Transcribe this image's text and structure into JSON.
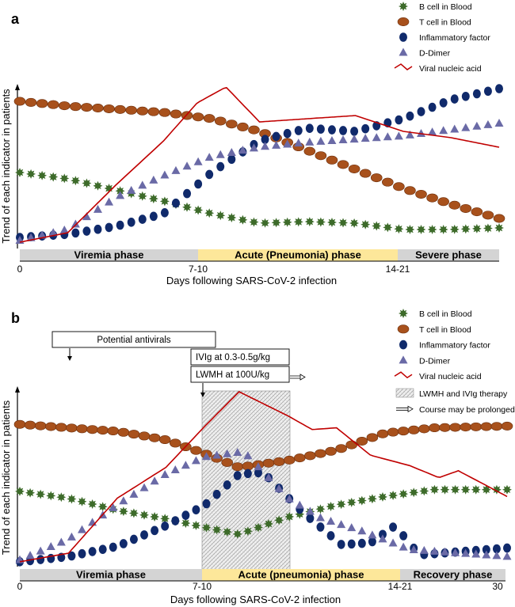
{
  "chart_data": [
    {
      "panel": "a",
      "type": "line",
      "xlabel": "Days following SARS-CoV-2 infection",
      "ylabel": "Trend of each indicator in patients",
      "x_ticks": [
        "0",
        "7-10",
        "14-21"
      ],
      "phases": [
        {
          "label": "Viremia  phase",
          "color": "#d4d4d4"
        },
        {
          "label": "Acute (Pneumonia) phase",
          "color": "#fde79a"
        },
        {
          "label": "Severe phase",
          "color": "#d4d4d4"
        }
      ],
      "x_range": [
        0,
        1
      ],
      "y_range": [
        0,
        1
      ],
      "x_note": "x is fraction of the time axis (0 = start, 1 = end of plotted range); y is relative trend (0 = baseline, 1 = max)",
      "series": [
        {
          "name": "B cell in Blood",
          "marker": "star",
          "color": "#3d6b2a",
          "points": [
            [
              0,
              0.46
            ],
            [
              0.1,
              0.42
            ],
            [
              0.2,
              0.35
            ],
            [
              0.3,
              0.28
            ],
            [
              0.4,
              0.2
            ],
            [
              0.5,
              0.14
            ],
            [
              0.6,
              0.15
            ],
            [
              0.7,
              0.14
            ],
            [
              0.8,
              0.1
            ],
            [
              0.9,
              0.1
            ],
            [
              1.0,
              0.11
            ]
          ]
        },
        {
          "name": "T cell in Blood",
          "marker": "ellipse",
          "color": "#a8511c",
          "points": [
            [
              0,
              0.91
            ],
            [
              0.1,
              0.88
            ],
            [
              0.2,
              0.86
            ],
            [
              0.3,
              0.84
            ],
            [
              0.4,
              0.8
            ],
            [
              0.5,
              0.72
            ],
            [
              0.6,
              0.6
            ],
            [
              0.7,
              0.48
            ],
            [
              0.8,
              0.36
            ],
            [
              0.9,
              0.26
            ],
            [
              1.0,
              0.17
            ]
          ]
        },
        {
          "name": "Inflammatory factor",
          "marker": "circle",
          "color": "#102a6b",
          "points": [
            [
              0,
              0.05
            ],
            [
              0.1,
              0.07
            ],
            [
              0.2,
              0.12
            ],
            [
              0.3,
              0.2
            ],
            [
              0.4,
              0.46
            ],
            [
              0.5,
              0.66
            ],
            [
              0.6,
              0.74
            ],
            [
              0.7,
              0.72
            ],
            [
              0.8,
              0.8
            ],
            [
              0.9,
              0.92
            ],
            [
              1.0,
              0.99
            ]
          ]
        },
        {
          "name": "D-Dimer",
          "marker": "triangle",
          "color": "#6a6aa6",
          "points": [
            [
              0,
              0.03
            ],
            [
              0.1,
              0.1
            ],
            [
              0.2,
              0.3
            ],
            [
              0.3,
              0.44
            ],
            [
              0.4,
              0.56
            ],
            [
              0.5,
              0.62
            ],
            [
              0.6,
              0.65
            ],
            [
              0.7,
              0.67
            ],
            [
              0.8,
              0.69
            ],
            [
              0.9,
              0.73
            ],
            [
              1.0,
              0.77
            ]
          ]
        },
        {
          "name": "Viral nucleic acid",
          "marker": "line",
          "color": "#c00000",
          "points": [
            [
              0,
              0.02
            ],
            [
              0.1,
              0.08
            ],
            [
              0.2,
              0.38
            ],
            [
              0.3,
              0.66
            ],
            [
              0.37,
              0.9
            ],
            [
              0.43,
              1.0
            ],
            [
              0.5,
              0.78
            ],
            [
              0.6,
              0.8
            ],
            [
              0.7,
              0.82
            ],
            [
              0.8,
              0.72
            ],
            [
              0.9,
              0.68
            ],
            [
              1.0,
              0.62
            ]
          ]
        }
      ],
      "legend_position": "top-right"
    },
    {
      "panel": "b",
      "type": "line",
      "xlabel": "Days following SARS-CoV-2 infection",
      "ylabel": "Trend of each indicator in patients",
      "x_ticks": [
        "0",
        "7-10",
        "14-21",
        "30"
      ],
      "phases": [
        {
          "label": "Viremia  phase",
          "color": "#d4d4d4"
        },
        {
          "label": "Acute (pneumonia) phase",
          "color": "#fde79a"
        },
        {
          "label": "Recovery phase",
          "color": "#d4d4d4"
        }
      ],
      "x_range": [
        0,
        1
      ],
      "y_range": [
        0,
        1
      ],
      "x_note": "x is fraction of the time axis (0 = start, 1 = end of plotted range); y is relative trend (0 = baseline, 1 = max)",
      "series": [
        {
          "name": "B cell in Blood",
          "marker": "star",
          "color": "#3d6b2a",
          "points": [
            [
              0,
              0.42
            ],
            [
              0.1,
              0.38
            ],
            [
              0.2,
              0.31
            ],
            [
              0.3,
              0.26
            ],
            [
              0.38,
              0.21
            ],
            [
              0.45,
              0.17
            ],
            [
              0.55,
              0.27
            ],
            [
              0.65,
              0.34
            ],
            [
              0.75,
              0.39
            ],
            [
              0.85,
              0.43
            ],
            [
              1.0,
              0.43
            ]
          ]
        },
        {
          "name": "T cell in Blood",
          "marker": "ellipse",
          "color": "#a8511c",
          "points": [
            [
              0,
              0.81
            ],
            [
              0.1,
              0.79
            ],
            [
              0.2,
              0.77
            ],
            [
              0.3,
              0.72
            ],
            [
              0.38,
              0.64
            ],
            [
              0.45,
              0.56
            ],
            [
              0.55,
              0.6
            ],
            [
              0.65,
              0.66
            ],
            [
              0.75,
              0.76
            ],
            [
              0.85,
              0.79
            ],
            [
              1.0,
              0.8
            ]
          ]
        },
        {
          "name": "Inflammatory factor",
          "marker": "circle",
          "color": "#102a6b",
          "points": [
            [
              0,
              0.01
            ],
            [
              0.1,
              0.04
            ],
            [
              0.2,
              0.1
            ],
            [
              0.3,
              0.22
            ],
            [
              0.38,
              0.34
            ],
            [
              0.45,
              0.52
            ],
            [
              0.5,
              0.53
            ],
            [
              0.58,
              0.3
            ],
            [
              0.66,
              0.11
            ],
            [
              0.72,
              0.12
            ],
            [
              0.77,
              0.22
            ],
            [
              0.82,
              0.05
            ],
            [
              1.0,
              0.09
            ]
          ]
        },
        {
          "name": "D-Dimer",
          "marker": "triangle",
          "color": "#6a6aa6",
          "points": [
            [
              0,
              0.02
            ],
            [
              0.1,
              0.14
            ],
            [
              0.2,
              0.34
            ],
            [
              0.3,
              0.52
            ],
            [
              0.38,
              0.62
            ],
            [
              0.46,
              0.65
            ],
            [
              0.55,
              0.38
            ],
            [
              0.62,
              0.26
            ],
            [
              0.7,
              0.19
            ],
            [
              0.8,
              0.08
            ],
            [
              1.0,
              0.04
            ]
          ]
        },
        {
          "name": "Viral nucleic acid",
          "marker": "line",
          "color": "#c00000",
          "points": [
            [
              0,
              0.01
            ],
            [
              0.1,
              0.06
            ],
            [
              0.2,
              0.38
            ],
            [
              0.3,
              0.56
            ],
            [
              0.38,
              0.8
            ],
            [
              0.45,
              1.0
            ],
            [
              0.55,
              0.86
            ],
            [
              0.6,
              0.78
            ],
            [
              0.65,
              0.79
            ],
            [
              0.72,
              0.63
            ],
            [
              0.8,
              0.57
            ],
            [
              0.86,
              0.5
            ],
            [
              0.9,
              0.54
            ],
            [
              1.0,
              0.39
            ]
          ]
        }
      ],
      "legend_position": "top-right",
      "annotations": {
        "antivirals": "Potential antivirals",
        "ivig": "IVIg at 0.3-0.5g/kg",
        "lwmh": "LWMH at 100U/kg",
        "therapy_legend": "LWMH and IVIg therapy",
        "prolonged_legend": "Course may be prolonged"
      }
    }
  ]
}
